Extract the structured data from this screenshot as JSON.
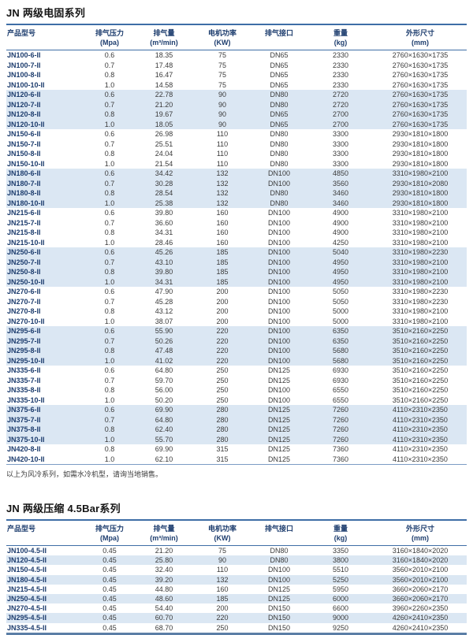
{
  "colors": {
    "rule_blue": "#3e6da6",
    "header_text": "#1d3d6e",
    "model_text": "#1d3d6e",
    "cell_text": "#3a3a3a",
    "row_shade": "#dbe7f3",
    "bottom_rule": "#5b7ea6"
  },
  "sections": [
    {
      "title": "JN 两级电固系列",
      "columns": [
        {
          "label": "产品型号",
          "unit": ""
        },
        {
          "label": "排气压力",
          "unit": "(Mpa)"
        },
        {
          "label": "排气量",
          "unit": "(m³/min)"
        },
        {
          "label": "电机功率",
          "unit": "(KW)"
        },
        {
          "label": "排气接口",
          "unit": ""
        },
        {
          "label": "重量",
          "unit": "(kg)"
        },
        {
          "label": "外形尺寸",
          "unit": "(mm)"
        }
      ],
      "rows": [
        {
          "shaded": false,
          "c": [
            "JN100-6-II",
            "0.6",
            "18.35",
            "75",
            "DN65",
            "2330",
            "2760×1630×1735"
          ]
        },
        {
          "shaded": false,
          "c": [
            "JN100-7-II",
            "0.7",
            "17.48",
            "75",
            "DN65",
            "2330",
            "2760×1630×1735"
          ]
        },
        {
          "shaded": false,
          "c": [
            "JN100-8-II",
            "0.8",
            "16.47",
            "75",
            "DN65",
            "2330",
            "2760×1630×1735"
          ]
        },
        {
          "shaded": false,
          "c": [
            "JN100-10-II",
            "1.0",
            "14.58",
            "75",
            "DN65",
            "2330",
            "2760×1630×1735"
          ]
        },
        {
          "shaded": true,
          "c": [
            "JN120-6-II",
            "0.6",
            "22.78",
            "90",
            "DN80",
            "2720",
            "2760×1630×1735"
          ]
        },
        {
          "shaded": true,
          "c": [
            "JN120-7-II",
            "0.7",
            "21.20",
            "90",
            "DN80",
            "2720",
            "2760×1630×1735"
          ]
        },
        {
          "shaded": true,
          "c": [
            "JN120-8-II",
            "0.8",
            "19.67",
            "90",
            "DN65",
            "2700",
            "2760×1630×1735"
          ]
        },
        {
          "shaded": true,
          "c": [
            "JN120-10-II",
            "1.0",
            "18.05",
            "90",
            "DN65",
            "2700",
            "2760×1630×1735"
          ]
        },
        {
          "shaded": false,
          "c": [
            "JN150-6-II",
            "0.6",
            "26.98",
            "110",
            "DN80",
            "3300",
            "2930×1810×1800"
          ]
        },
        {
          "shaded": false,
          "c": [
            "JN150-7-II",
            "0.7",
            "25.51",
            "110",
            "DN80",
            "3300",
            "2930×1810×1800"
          ]
        },
        {
          "shaded": false,
          "c": [
            "JN150-8-II",
            "0.8",
            "24.04",
            "110",
            "DN80",
            "3300",
            "2930×1810×1800"
          ]
        },
        {
          "shaded": false,
          "c": [
            "JN150-10-II",
            "1.0",
            "21.54",
            "110",
            "DN80",
            "3300",
            "2930×1810×1800"
          ]
        },
        {
          "shaded": true,
          "c": [
            "JN180-6-II",
            "0.6",
            "34.42",
            "132",
            "DN100",
            "4850",
            "3310×1980×2100"
          ]
        },
        {
          "shaded": true,
          "c": [
            "JN180-7-II",
            "0.7",
            "30.28",
            "132",
            "DN100",
            "3560",
            "2930×1810×2080"
          ]
        },
        {
          "shaded": true,
          "c": [
            "JN180-8-II",
            "0.8",
            "28.54",
            "132",
            "DN80",
            "3460",
            "2930×1810×1800"
          ]
        },
        {
          "shaded": true,
          "c": [
            "JN180-10-II",
            "1.0",
            "25.38",
            "132",
            "DN80",
            "3460",
            "2930×1810×1800"
          ]
        },
        {
          "shaded": false,
          "c": [
            "JN215-6-II",
            "0.6",
            "39.80",
            "160",
            "DN100",
            "4900",
            "3310×1980×2100"
          ]
        },
        {
          "shaded": false,
          "c": [
            "JN215-7-II",
            "0.7",
            "36.60",
            "160",
            "DN100",
            "4900",
            "3310×1980×2100"
          ]
        },
        {
          "shaded": false,
          "c": [
            "JN215-8-II",
            "0.8",
            "34.31",
            "160",
            "DN100",
            "4900",
            "3310×1980×2100"
          ]
        },
        {
          "shaded": false,
          "c": [
            "JN215-10-II",
            "1.0",
            "28.46",
            "160",
            "DN100",
            "4250",
            "3310×1980×2100"
          ]
        },
        {
          "shaded": true,
          "c": [
            "JN250-6-II",
            "0.6",
            "45.26",
            "185",
            "DN100",
            "5040",
            "3310×1980×2230"
          ]
        },
        {
          "shaded": true,
          "c": [
            "JN250-7-II",
            "0.7",
            "43.10",
            "185",
            "DN100",
            "4950",
            "3310×1980×2100"
          ]
        },
        {
          "shaded": true,
          "c": [
            "JN250-8-II",
            "0.8",
            "39.80",
            "185",
            "DN100",
            "4950",
            "3310×1980×2100"
          ]
        },
        {
          "shaded": true,
          "c": [
            "JN250-10-II",
            "1.0",
            "34.31",
            "185",
            "DN100",
            "4950",
            "3310×1980×2100"
          ]
        },
        {
          "shaded": false,
          "c": [
            "JN270-6-II",
            "0.6",
            "47.90",
            "200",
            "DN100",
            "5050",
            "3310×1980×2230"
          ]
        },
        {
          "shaded": false,
          "c": [
            "JN270-7-II",
            "0.7",
            "45.28",
            "200",
            "DN100",
            "5050",
            "3310×1980×2230"
          ]
        },
        {
          "shaded": false,
          "c": [
            "JN270-8-II",
            "0.8",
            "43.12",
            "200",
            "DN100",
            "5000",
            "3310×1980×2100"
          ]
        },
        {
          "shaded": false,
          "c": [
            "JN270-10-II",
            "1.0",
            "38.07",
            "200",
            "DN100",
            "5000",
            "3310×1980×2100"
          ]
        },
        {
          "shaded": true,
          "c": [
            "JN295-6-II",
            "0.6",
            "55.90",
            "220",
            "DN100",
            "6350",
            "3510×2160×2250"
          ]
        },
        {
          "shaded": true,
          "c": [
            "JN295-7-II",
            "0.7",
            "50.26",
            "220",
            "DN100",
            "6350",
            "3510×2160×2250"
          ]
        },
        {
          "shaded": true,
          "c": [
            "JN295-8-II",
            "0.8",
            "47.48",
            "220",
            "DN100",
            "5680",
            "3510×2160×2250"
          ]
        },
        {
          "shaded": true,
          "c": [
            "JN295-10-II",
            "1.0",
            "41.02",
            "220",
            "DN100",
            "5680",
            "3510×2160×2250"
          ]
        },
        {
          "shaded": false,
          "c": [
            "JN335-6-II",
            "0.6",
            "64.80",
            "250",
            "DN125",
            "6930",
            "3510×2160×2250"
          ]
        },
        {
          "shaded": false,
          "c": [
            "JN335-7-II",
            "0.7",
            "59.70",
            "250",
            "DN125",
            "6930",
            "3510×2160×2250"
          ]
        },
        {
          "shaded": false,
          "c": [
            "JN335-8-II",
            "0.8",
            "56.00",
            "250",
            "DN100",
            "6550",
            "3510×2160×2250"
          ]
        },
        {
          "shaded": false,
          "c": [
            "JN335-10-II",
            "1.0",
            "50.20",
            "250",
            "DN100",
            "6550",
            "3510×2160×2250"
          ]
        },
        {
          "shaded": true,
          "c": [
            "JN375-6-II",
            "0.6",
            "69.90",
            "280",
            "DN125",
            "7260",
            "4110×2310×2350"
          ]
        },
        {
          "shaded": true,
          "c": [
            "JN375-7-II",
            "0.7",
            "64.80",
            "280",
            "DN125",
            "7260",
            "4110×2310×2350"
          ]
        },
        {
          "shaded": true,
          "c": [
            "JN375-8-II",
            "0.8",
            "62.40",
            "280",
            "DN125",
            "7260",
            "4110×2310×2350"
          ]
        },
        {
          "shaded": true,
          "c": [
            "JN375-10-II",
            "1.0",
            "55.70",
            "280",
            "DN125",
            "7260",
            "4110×2310×2350"
          ]
        },
        {
          "shaded": false,
          "c": [
            "JN420-8-II",
            "0.8",
            "69.90",
            "315",
            "DN125",
            "7360",
            "4110×2310×2350"
          ]
        },
        {
          "shaded": false,
          "c": [
            "JN420-10-II",
            "1.0",
            "62.10",
            "315",
            "DN125",
            "7360",
            "4110×2310×2350"
          ]
        }
      ],
      "note": "以上为风冷系列，如需水冷机型，请询当地销售。"
    },
    {
      "title": "JN 两级压缩 4.5Bar系列",
      "columns": [
        {
          "label": "产品型号",
          "unit": ""
        },
        {
          "label": "排气压力",
          "unit": "(Mpa)"
        },
        {
          "label": "排气量",
          "unit": "(m³/min)"
        },
        {
          "label": "电机功率",
          "unit": "(KW)"
        },
        {
          "label": "排气接口",
          "unit": ""
        },
        {
          "label": "重量",
          "unit": "(kg)"
        },
        {
          "label": "外形尺寸",
          "unit": "(mm)"
        }
      ],
      "rows": [
        {
          "shaded": false,
          "c": [
            "JN100-4.5-II",
            "0.45",
            "21.20",
            "75",
            "DN80",
            "3350",
            "3160×1840×2020"
          ]
        },
        {
          "shaded": true,
          "c": [
            "JN120-4.5-II",
            "0.45",
            "25.80",
            "90",
            "DN80",
            "3800",
            "3160×1840×2020"
          ]
        },
        {
          "shaded": false,
          "c": [
            "JN150-4.5-II",
            "0.45",
            "32.40",
            "110",
            "DN100",
            "5510",
            "3560×2010×2100"
          ]
        },
        {
          "shaded": true,
          "c": [
            "JN180-4.5-II",
            "0.45",
            "39.20",
            "132",
            "DN100",
            "5250",
            "3560×2010×2100"
          ]
        },
        {
          "shaded": false,
          "c": [
            "JN215-4.5-II",
            "0.45",
            "44.80",
            "160",
            "DN125",
            "5950",
            "3660×2060×2170"
          ]
        },
        {
          "shaded": true,
          "c": [
            "JN250-4.5-II",
            "0.45",
            "48.60",
            "185",
            "DN125",
            "6000",
            "3660×2060×2170"
          ]
        },
        {
          "shaded": false,
          "c": [
            "JN270-4.5-II",
            "0.45",
            "54.40",
            "200",
            "DN150",
            "6600",
            "3960×2260×2350"
          ]
        },
        {
          "shaded": true,
          "c": [
            "JN295-4.5-II",
            "0.45",
            "60.70",
            "220",
            "DN150",
            "9000",
            "4260×2410×2350"
          ]
        },
        {
          "shaded": false,
          "c": [
            "JN335-4.5-II",
            "0.45",
            "68.70",
            "250",
            "DN150",
            "9250",
            "4260×2410×2350"
          ]
        }
      ],
      "note": ""
    }
  ]
}
